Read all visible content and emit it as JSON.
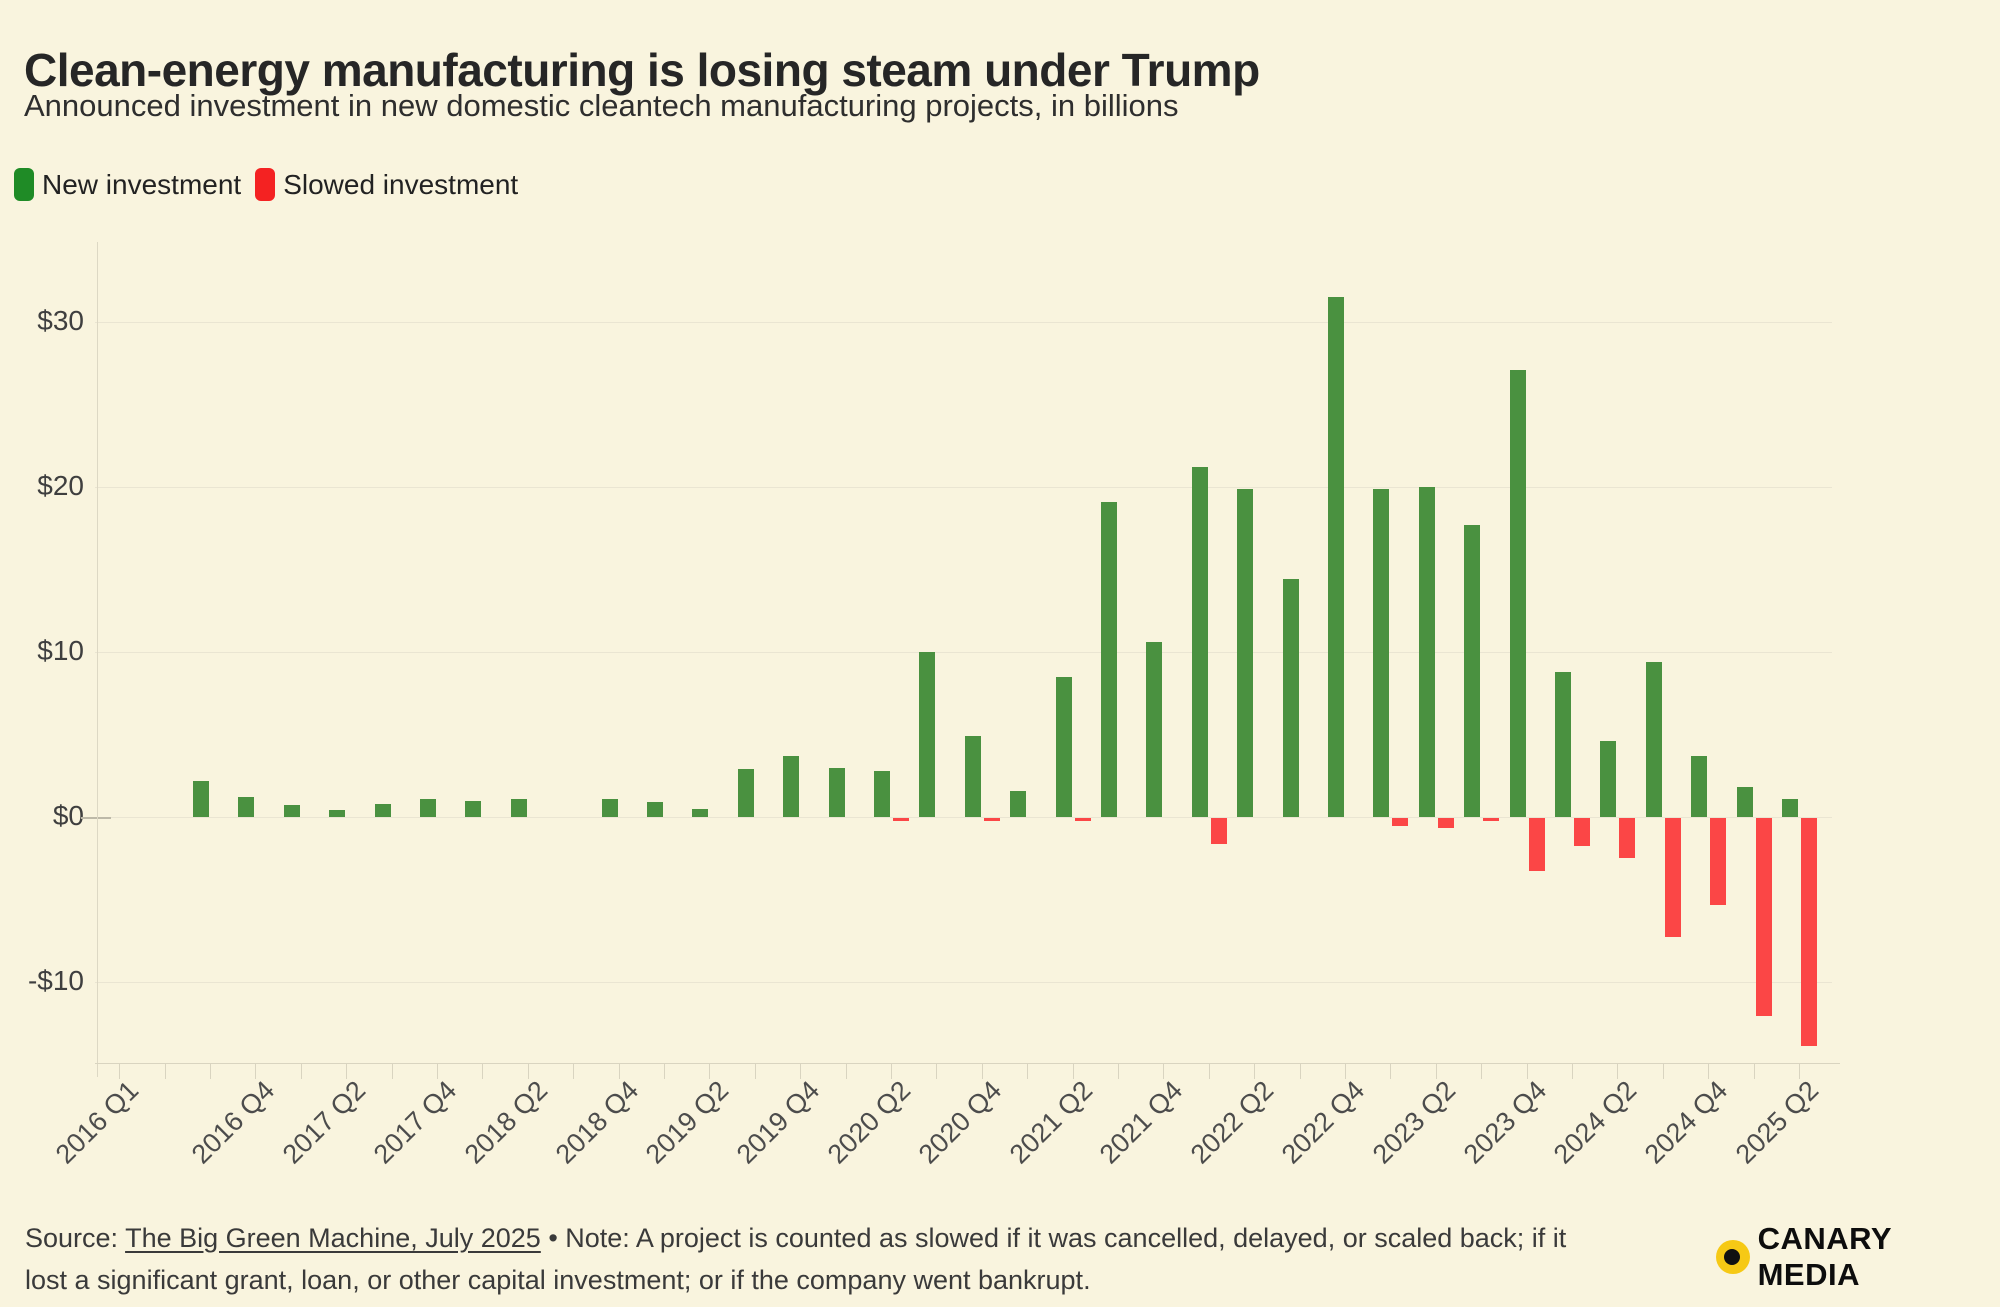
{
  "header": {
    "title": "Clean-energy manufacturing is losing steam under Trump",
    "subtitle": "Announced investment in new domestic cleantech manufacturing projects, in billions"
  },
  "legend": {
    "new": {
      "label": "New investment",
      "color": "#1f8b26"
    },
    "slowed": {
      "label": "Slowed investment",
      "color": "#f42222"
    }
  },
  "colors": {
    "background": "#f9f4de",
    "bar_green": "#4a9140",
    "bar_red": "#fb4646",
    "gridline": "#eae5d2",
    "axis": "#d9d4c0",
    "text_dark": "#262626",
    "logo_yellow": "#f6c915"
  },
  "chart_data": {
    "type": "bar",
    "title": "Clean-energy manufacturing is losing steam under Trump",
    "subtitle": "Announced investment in new domestic cleantech manufacturing projects, in billions",
    "unit": "billions of dollars",
    "grid": "horizontal",
    "legend_position": "top-left",
    "ylim": [
      -14.9,
      34.6
    ],
    "categories": [
      "2016 Q1",
      "2016 Q2",
      "2016 Q3",
      "2016 Q4",
      "2017 Q1",
      "2017 Q2",
      "2017 Q3",
      "2017 Q4",
      "2018 Q1",
      "2018 Q2",
      "2018 Q3",
      "2018 Q4",
      "2019 Q1",
      "2019 Q2",
      "2019 Q3",
      "2019 Q4",
      "2020 Q1",
      "2020 Q2",
      "2020 Q3",
      "2020 Q4",
      "2021 Q1",
      "2021 Q2",
      "2021 Q3",
      "2021 Q4",
      "2022 Q1",
      "2022 Q2",
      "2022 Q3",
      "2022 Q4",
      "2023 Q1",
      "2023 Q2",
      "2023 Q3",
      "2023 Q4",
      "2024 Q1",
      "2024 Q2",
      "2024 Q3",
      "2024 Q4",
      "2025 Q1",
      "2025 Q2"
    ],
    "series": [
      {
        "name": "New investment",
        "color": "#4a9140",
        "values": [
          null,
          null,
          2.2,
          1.2,
          0.7,
          0.4,
          0.8,
          1.1,
          1.0,
          1.1,
          null,
          1.1,
          0.9,
          0.5,
          2.9,
          3.7,
          3.0,
          2.8,
          10.0,
          4.9,
          1.6,
          8.5,
          19.1,
          10.6,
          21.2,
          19.9,
          14.4,
          31.5,
          19.9,
          20.0,
          17.7,
          27.1,
          8.8,
          4.6,
          9.4,
          3.7,
          1.8,
          1.1
        ]
      },
      {
        "name": "Slowed investment",
        "color": "#fb4646",
        "values": [
          null,
          null,
          null,
          null,
          null,
          null,
          null,
          null,
          null,
          null,
          null,
          null,
          null,
          null,
          null,
          null,
          null,
          -0.2,
          null,
          -0.2,
          null,
          -0.2,
          null,
          null,
          -1.6,
          null,
          null,
          null,
          -0.5,
          -0.6,
          -0.2,
          -3.2,
          -1.7,
          -2.4,
          -7.2,
          -5.3,
          -12.0,
          -13.8
        ]
      }
    ],
    "x_tick_labels": [
      "2016 Q1",
      "2016 Q4",
      "2017 Q2",
      "2017 Q4",
      "2018 Q2",
      "2018 Q4",
      "2019 Q2",
      "2019 Q4",
      "2020 Q2",
      "2020 Q4",
      "2021 Q2",
      "2021 Q4",
      "2022 Q2",
      "2022 Q4",
      "2023 Q2",
      "2023 Q4",
      "2024 Q2",
      "2024 Q4",
      "2025 Q2"
    ],
    "x_tick_slots": [
      0,
      3,
      5,
      7,
      9,
      11,
      13,
      15,
      17,
      19,
      21,
      23,
      25,
      27,
      29,
      31,
      33,
      35,
      37
    ],
    "y_ticks": [
      {
        "label": "$30",
        "value": 30
      },
      {
        "label": "$20",
        "value": 20
      },
      {
        "label": "$10",
        "value": 10
      },
      {
        "label": "$0",
        "value": 0
      },
      {
        "label": "-$10",
        "value": -10
      }
    ]
  },
  "footer": {
    "source_prefix": "Source: ",
    "source_link": "The Big Green Machine, July 2025",
    "note_line1": " • Note: A project is counted as slowed if it was cancelled, delayed, or scaled back; if it",
    "note_line2": "lost a significant grant, loan, or other capital investment; or if the company went bankrupt."
  },
  "logo": {
    "text": "CANARY MEDIA"
  }
}
